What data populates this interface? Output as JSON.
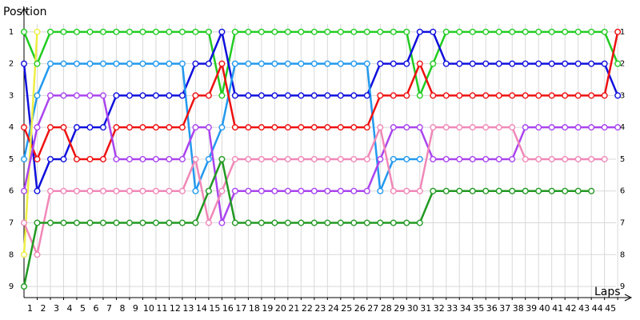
{
  "chart_data": {
    "type": "line",
    "x_label": "Laps",
    "y_label": "Position",
    "x": [
      0,
      1,
      2,
      3,
      4,
      5,
      6,
      7,
      8,
      9,
      10,
      11,
      12,
      13,
      14,
      15,
      16,
      17,
      18,
      19,
      20,
      21,
      22,
      23,
      24,
      25,
      26,
      27,
      28,
      29,
      30,
      31,
      32,
      33,
      34,
      35,
      36,
      37,
      38,
      39,
      40,
      41,
      42,
      43,
      44,
      45
    ],
    "xlim": [
      0,
      45.9
    ],
    "xticks": [
      1,
      2,
      3,
      4,
      5,
      6,
      7,
      8,
      9,
      10,
      11,
      12,
      13,
      14,
      15,
      16,
      17,
      18,
      19,
      20,
      21,
      22,
      23,
      24,
      25,
      26,
      27,
      28,
      29,
      30,
      31,
      32,
      33,
      34,
      35,
      36,
      37,
      38,
      39,
      40,
      41,
      42,
      43,
      44,
      45
    ],
    "ylim": [
      9.35,
      0.3
    ],
    "yticks": [
      1,
      2,
      3,
      4,
      5,
      6,
      7,
      8,
      9
    ],
    "grid": true,
    "series": [
      {
        "color": "#22cc22",
        "values": [
          1,
          2,
          1,
          1,
          1,
          1,
          1,
          1,
          1,
          1,
          1,
          1,
          1,
          1,
          1,
          3,
          1,
          1,
          1,
          1,
          1,
          1,
          1,
          1,
          1,
          1,
          1,
          1,
          1,
          1,
          3,
          2,
          1,
          1,
          1,
          1,
          1,
          1,
          1,
          1,
          1,
          1,
          1,
          1,
          1,
          2
        ]
      },
      {
        "color": "#1010dd",
        "values": [
          2,
          6,
          5,
          5,
          4,
          4,
          4,
          3,
          3,
          3,
          3,
          3,
          3,
          2,
          2,
          1,
          3,
          3,
          3,
          3,
          3,
          3,
          3,
          3,
          3,
          3,
          3,
          2,
          2,
          2,
          1,
          1,
          2,
          2,
          2,
          2,
          2,
          2,
          2,
          2,
          2,
          2,
          2,
          2,
          2,
          3
        ]
      },
      {
        "color": "#2299ee",
        "values": [
          5,
          3,
          2,
          2,
          2,
          2,
          2,
          2,
          2,
          2,
          2,
          2,
          2,
          6,
          5,
          4,
          2,
          2,
          2,
          2,
          2,
          2,
          2,
          2,
          2,
          2,
          2,
          6,
          5,
          5,
          5,
          null,
          null,
          null,
          null,
          null,
          null,
          null,
          null,
          null,
          null,
          null,
          null,
          null,
          null,
          null
        ]
      },
      {
        "color": "#ee1111",
        "values": [
          4,
          5,
          4,
          4,
          5,
          5,
          5,
          4,
          4,
          4,
          4,
          4,
          4,
          3,
          3,
          2,
          4,
          4,
          4,
          4,
          4,
          4,
          4,
          4,
          4,
          4,
          4,
          3,
          3,
          3,
          2,
          3,
          3,
          3,
          3,
          3,
          3,
          3,
          3,
          3,
          3,
          3,
          3,
          3,
          3,
          1
        ]
      },
      {
        "color": "#eeee44",
        "values": [
          8,
          1,
          null,
          null,
          null,
          null,
          null,
          null,
          null,
          null,
          null,
          null,
          null,
          null,
          null,
          null,
          null,
          null,
          null,
          null,
          null,
          null,
          null,
          null,
          null,
          null,
          null,
          null,
          null,
          null,
          null,
          null,
          null,
          null,
          null,
          null,
          null,
          null,
          null,
          null,
          null,
          null,
          null,
          null,
          null,
          null
        ]
      },
      {
        "color": "#aa44ee",
        "values": [
          6,
          4,
          3,
          3,
          3,
          3,
          3,
          5,
          5,
          5,
          5,
          5,
          5,
          4,
          4,
          7,
          6,
          6,
          6,
          6,
          6,
          6,
          6,
          6,
          6,
          6,
          6,
          5,
          4,
          4,
          4,
          5,
          5,
          5,
          5,
          5,
          5,
          5,
          4,
          4,
          4,
          4,
          4,
          4,
          4,
          4
        ]
      },
      {
        "color": "#f088b8",
        "values": [
          7,
          8,
          6,
          6,
          6,
          6,
          6,
          6,
          6,
          6,
          6,
          6,
          6,
          5,
          7,
          6,
          5,
          5,
          5,
          5,
          5,
          5,
          5,
          5,
          5,
          5,
          5,
          4,
          6,
          6,
          6,
          4,
          4,
          4,
          4,
          4,
          4,
          4,
          5,
          5,
          5,
          5,
          5,
          5,
          5,
          null
        ]
      },
      {
        "color": "#229922",
        "values": [
          9,
          7,
          7,
          7,
          7,
          7,
          7,
          7,
          7,
          7,
          7,
          7,
          7,
          7,
          6,
          5,
          7,
          7,
          7,
          7,
          7,
          7,
          7,
          7,
          7,
          7,
          7,
          7,
          7,
          7,
          7,
          6,
          6,
          6,
          6,
          6,
          6,
          6,
          6,
          6,
          6,
          6,
          6,
          6,
          null,
          null
        ]
      }
    ]
  }
}
